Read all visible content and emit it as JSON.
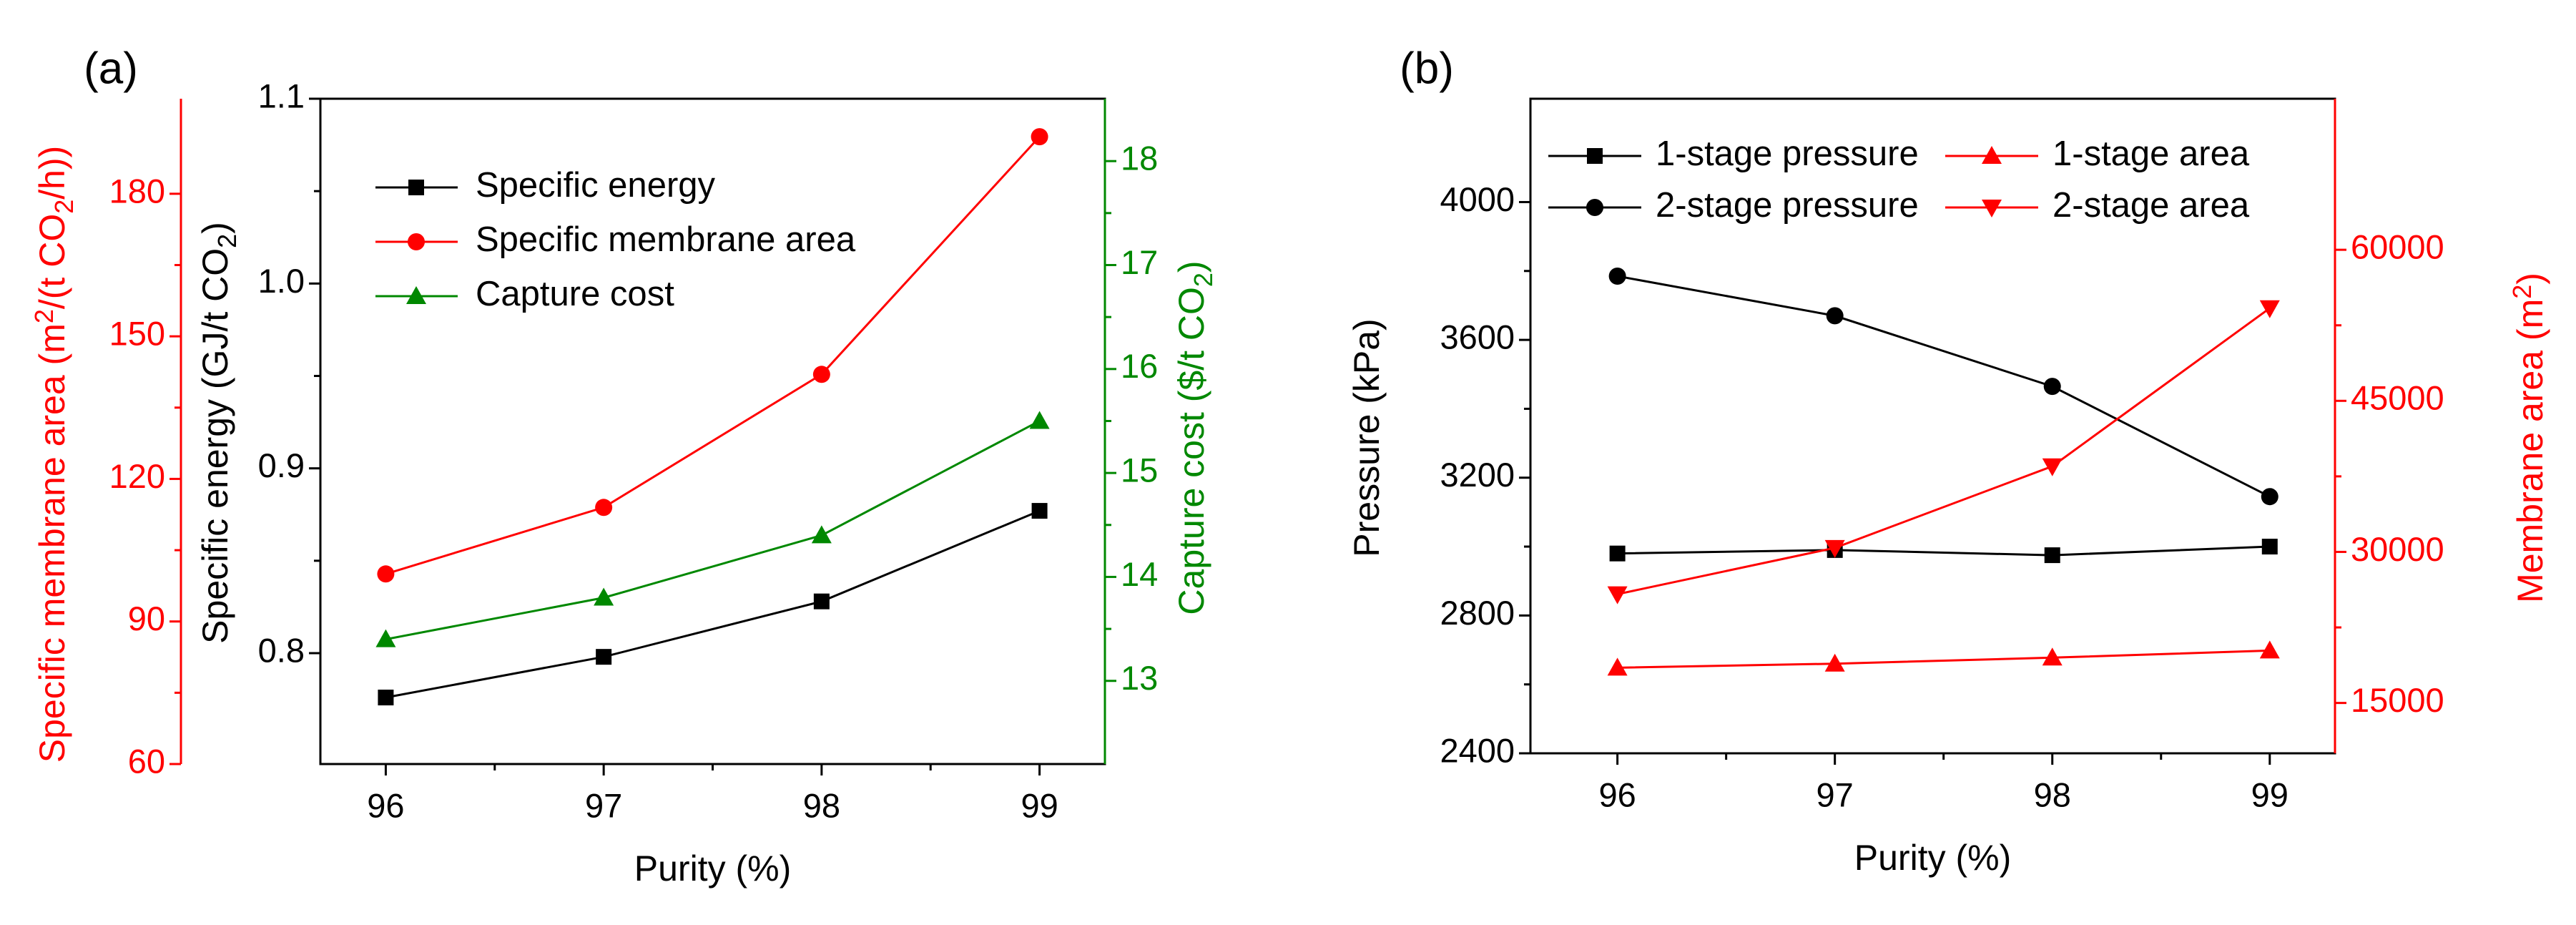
{
  "colors": {
    "black": "#000000",
    "red": "#ff0000",
    "green": "#008800"
  },
  "chart_data": [
    {
      "type": "line",
      "panel_label": "(a)",
      "x": [
        96,
        97,
        98,
        99
      ],
      "xlim": [
        95.7,
        99.3
      ],
      "x_ticks": [
        "96",
        "97",
        "98",
        "99"
      ],
      "xlabel": "Purity (%)",
      "axes": {
        "energy": {
          "label_main": "Specific energy (GJ/t CO",
          "label_sub": "2",
          "label_end": ")",
          "ylim": [
            0.74,
            1.1
          ],
          "ticks": [
            0.8,
            0.9,
            1.0,
            1.1
          ],
          "tick_labels": [
            "0.8",
            "0.9",
            "1.0",
            "1.1"
          ],
          "color": "#000000"
        },
        "area": {
          "label_main": "Specific membrane area (m",
          "label_sup": "2",
          "label_mid": "/(t CO",
          "label_sub": "2",
          "label_end": "/h))",
          "ylim": [
            60,
            200
          ],
          "ticks": [
            60,
            90,
            120,
            150,
            180
          ],
          "tick_labels": [
            "60",
            "90",
            "120",
            "150",
            "180"
          ],
          "color": "#ff0000"
        },
        "cost": {
          "label_main": "Capture cost ($/t CO",
          "label_sub": "2",
          "label_end": ")",
          "ylim": [
            12.2,
            18.6
          ],
          "ticks": [
            13,
            14,
            15,
            16,
            17,
            18
          ],
          "tick_labels": [
            "13",
            "14",
            "15",
            "16",
            "17",
            "18"
          ],
          "color": "#008800"
        }
      },
      "series": [
        {
          "name": "Specific energy",
          "axis": "energy",
          "marker": "square",
          "color": "#000000",
          "values": [
            0.776,
            0.798,
            0.828,
            0.877
          ]
        },
        {
          "name": "Specific membrane area",
          "axis": "area",
          "marker": "circle",
          "color": "#ff0000",
          "values": [
            100,
            114,
            142,
            192
          ]
        },
        {
          "name": "Capture cost",
          "axis": "cost",
          "marker": "triangle-up",
          "color": "#008800",
          "values": [
            13.4,
            13.8,
            14.4,
            15.5
          ]
        }
      ],
      "legend": "top-left"
    },
    {
      "type": "line",
      "panel_label": "(b)",
      "x": [
        96,
        97,
        98,
        99
      ],
      "xlim": [
        95.6,
        99.3
      ],
      "x_ticks": [
        "96",
        "97",
        "98",
        "99"
      ],
      "xlabel": "Purity (%)",
      "axes": {
        "pressure": {
          "label_main": "Pressure (kPa)",
          "ylim": [
            2400,
            4300
          ],
          "ticks": [
            2400,
            2800,
            3200,
            3600,
            4000
          ],
          "tick_labels": [
            "2400",
            "2800",
            "3200",
            "3600",
            "4000"
          ],
          "color": "#000000"
        },
        "area": {
          "label_main": "Membrane area (m",
          "label_sup": "2",
          "label_end": ")",
          "ylim": [
            10000,
            75000
          ],
          "ticks": [
            15000,
            30000,
            45000,
            60000
          ],
          "tick_labels": [
            "15000",
            "30000",
            "45000",
            "60000"
          ],
          "color": "#ff0000"
        }
      },
      "series": [
        {
          "name": "1-stage pressure",
          "axis": "pressure",
          "marker": "square",
          "color": "#000000",
          "values": [
            2980,
            2990,
            2975,
            3000
          ]
        },
        {
          "name": "2-stage pressure",
          "axis": "pressure",
          "marker": "circle",
          "color": "#000000",
          "values": [
            3785,
            3670,
            3465,
            3145
          ]
        },
        {
          "name": "1-stage area",
          "axis": "area",
          "marker": "triangle-up",
          "color": "#ff0000",
          "values": [
            18500,
            18900,
            19500,
            20200
          ]
        },
        {
          "name": "2-stage area",
          "axis": "area",
          "marker": "triangle-down",
          "color": "#ff0000",
          "values": [
            25800,
            30400,
            38500,
            54200
          ]
        }
      ],
      "legend": "top, two columns"
    }
  ]
}
